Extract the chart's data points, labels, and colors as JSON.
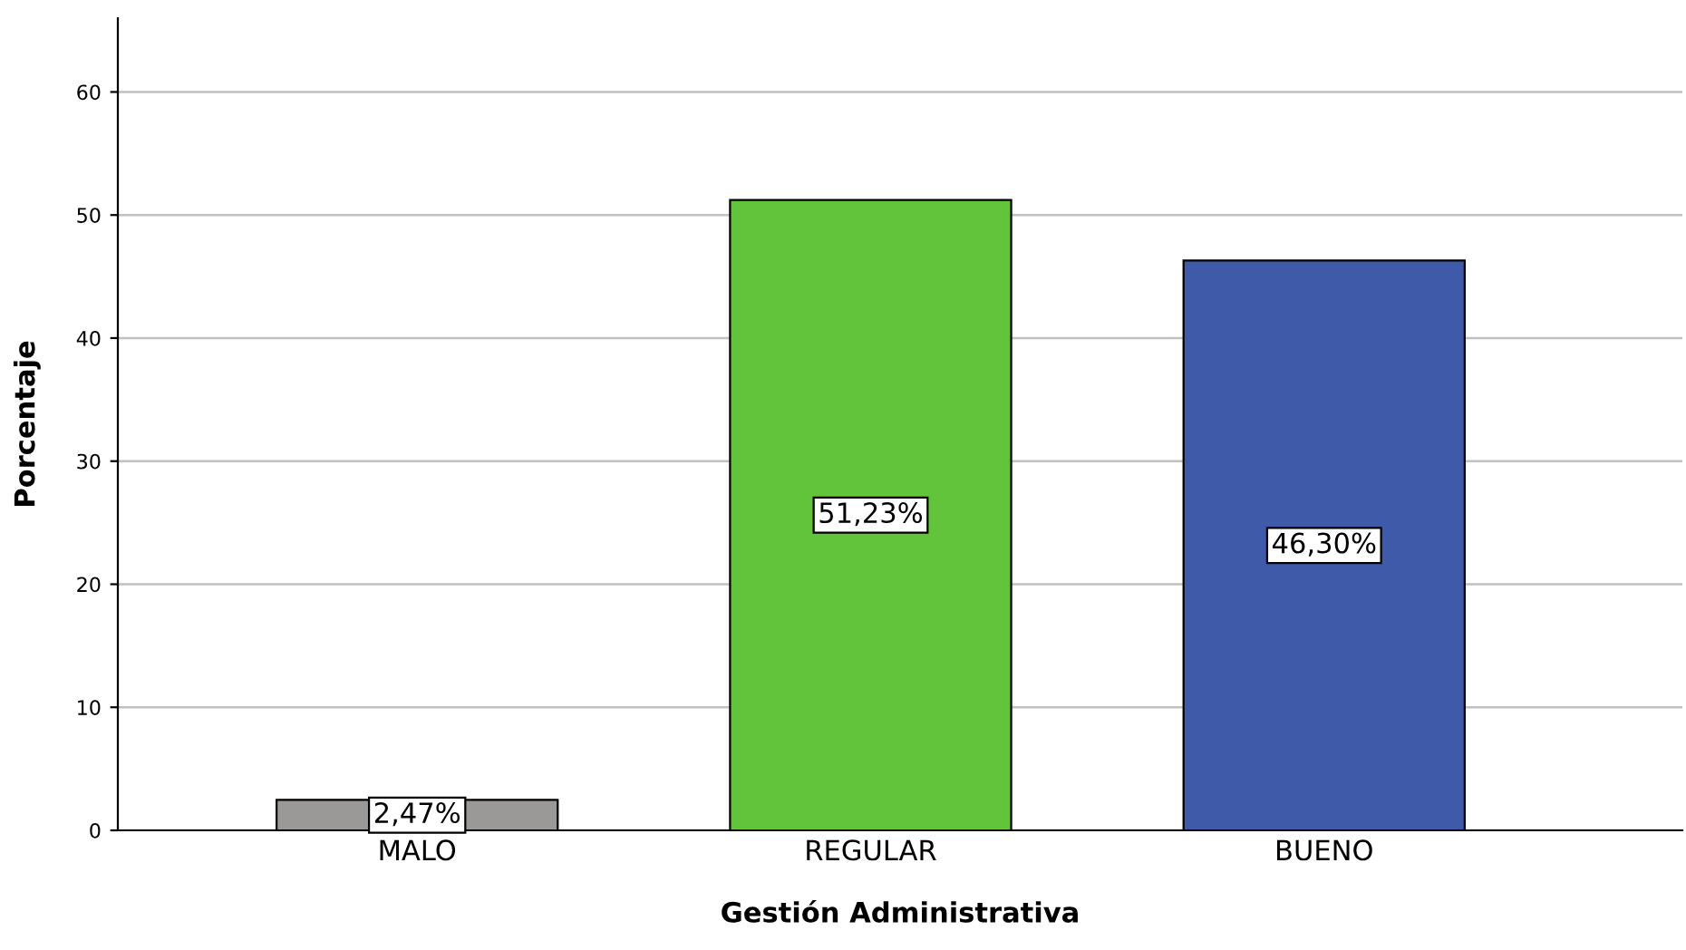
{
  "chart_data": {
    "type": "bar",
    "xlabel": "Gestión Administrativa",
    "ylabel": "Porcentaje",
    "categories": [
      "MALO",
      "REGULAR",
      "BUENO"
    ],
    "values": [
      2.47,
      51.23,
      46.3
    ],
    "colors": [
      "#9b9898",
      "#62c43a",
      "#3e5aa8"
    ],
    "value_labels": [
      "2,47%",
      "51,23%",
      "46,30%"
    ],
    "ylim": [
      0,
      66
    ],
    "yticks": [
      0,
      10,
      20,
      30,
      40,
      50,
      60
    ],
    "grid": "y"
  }
}
